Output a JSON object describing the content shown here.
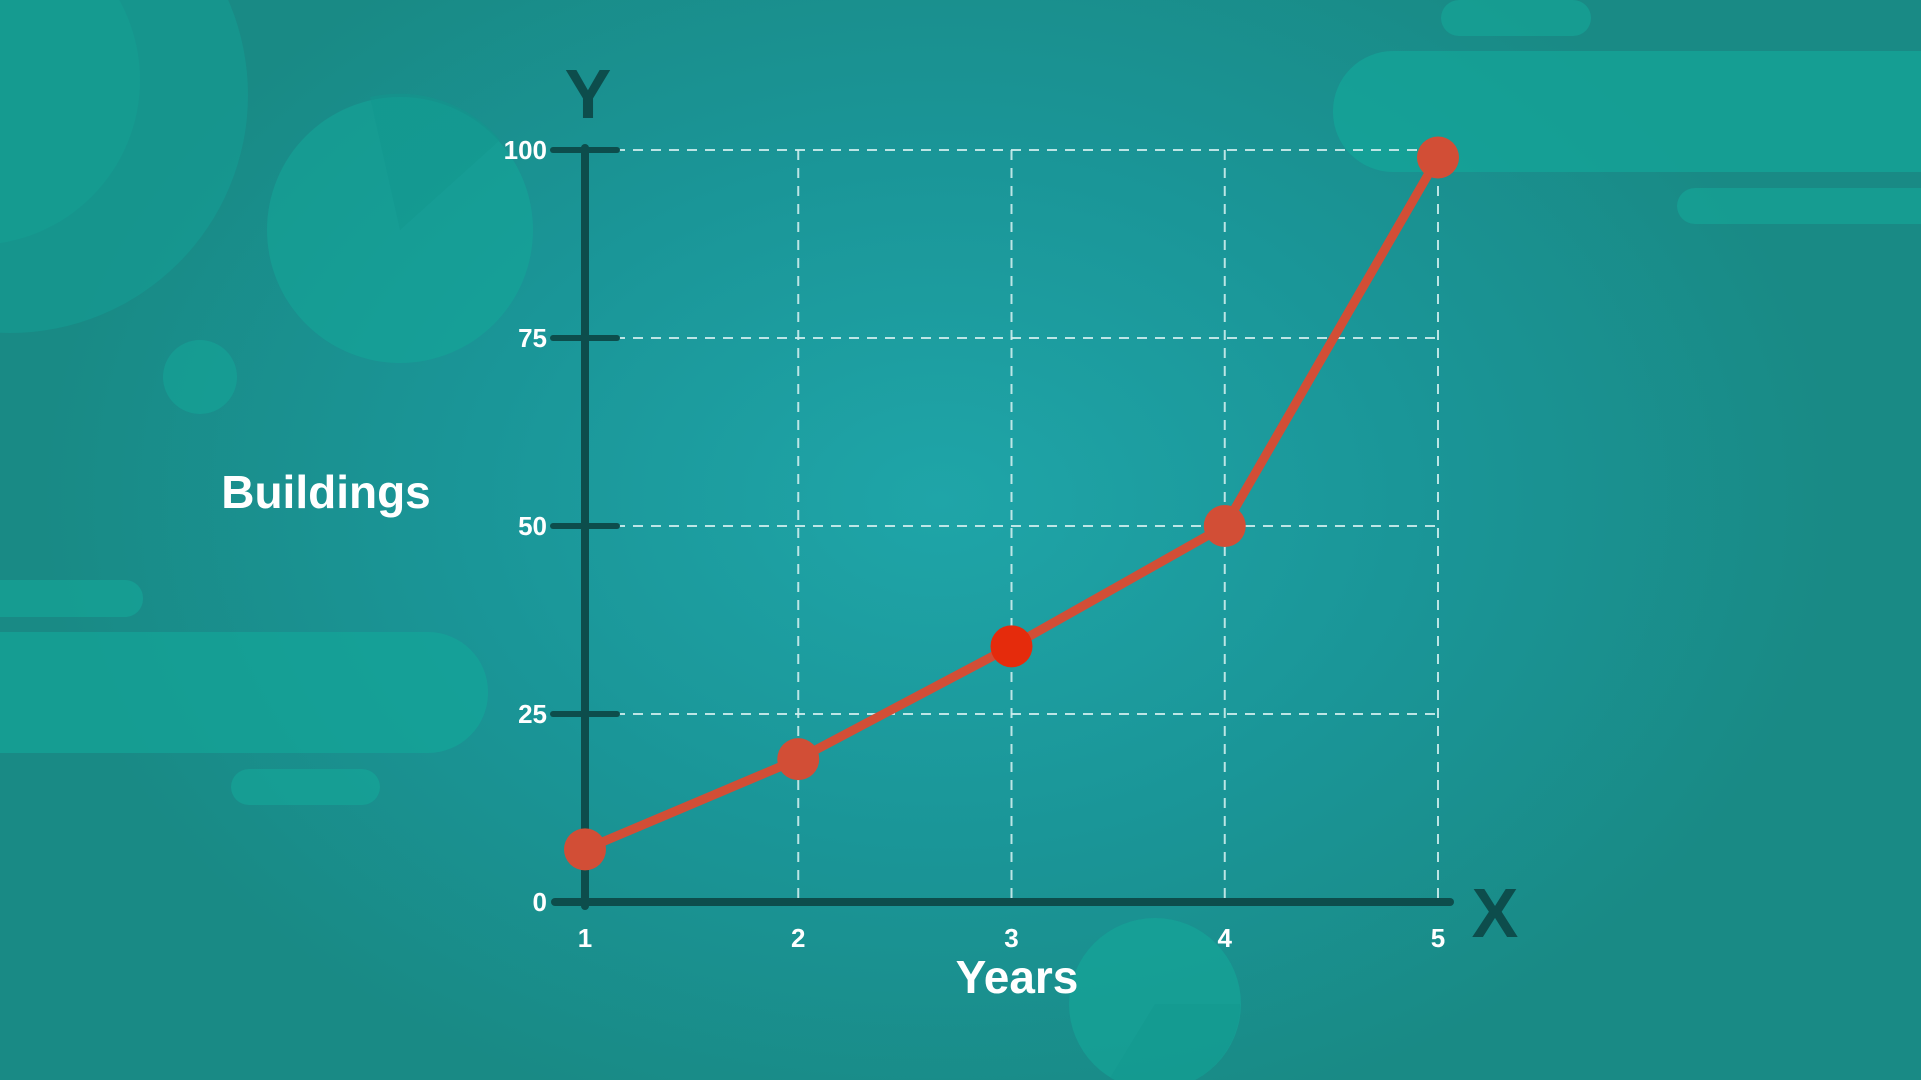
{
  "chart_data": {
    "type": "line",
    "x": [
      1,
      2,
      3,
      4,
      5
    ],
    "series": [
      {
        "values": [
          7,
          19,
          34,
          50,
          99
        ]
      }
    ],
    "xlabel": "Years",
    "ylabel": "Buildings",
    "x_axis_letter": "X",
    "y_axis_letter": "Y",
    "x_ticks": [
      "1",
      "2",
      "3",
      "4",
      "5"
    ],
    "y_ticks": [
      "0",
      "25",
      "50",
      "75",
      "100"
    ],
    "xlim": [
      1,
      5
    ],
    "ylim": [
      0,
      100
    ],
    "grid": true,
    "highlighted_point_index": 2,
    "colors": {
      "line": "#d24e36",
      "point": "#d24e36",
      "highlight_point": "#e52b0c",
      "axis": "#0d4d4c",
      "grid": "#cfeeee",
      "label": "#ffffff",
      "decor": "#13a89c"
    }
  }
}
